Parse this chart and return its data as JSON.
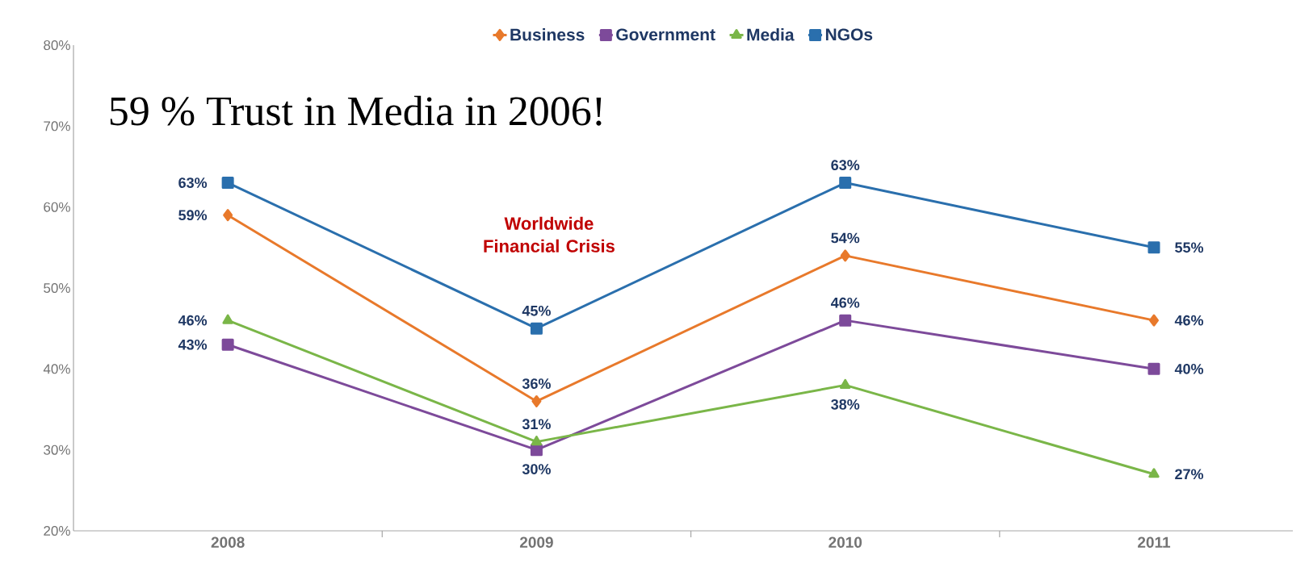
{
  "chart_data": {
    "type": "line",
    "categories": [
      "2008",
      "2009",
      "2010",
      "2011"
    ],
    "series": [
      {
        "name": "Business",
        "color": "#e8792b",
        "marker": "diamond",
        "values": [
          59,
          36,
          54,
          46
        ],
        "value_labels": [
          "59%",
          "36%",
          "54%",
          "46%"
        ]
      },
      {
        "name": "Government",
        "color": "#7d4a9a",
        "marker": "square",
        "values": [
          43,
          30,
          46,
          40
        ],
        "value_labels": [
          "43%",
          "30%",
          "46%",
          "40%"
        ]
      },
      {
        "name": "Media",
        "color": "#7ab648",
        "marker": "triangle",
        "values": [
          46,
          31,
          38,
          27
        ],
        "value_labels": [
          "46%",
          "31%",
          "38%",
          "27%"
        ]
      },
      {
        "name": "NGOs",
        "color": "#2a6fad",
        "marker": "square",
        "values": [
          63,
          45,
          63,
          55
        ],
        "value_labels": [
          "63%",
          "45%",
          "63%",
          "55%"
        ]
      }
    ],
    "ylim": [
      20,
      80
    ],
    "yticks": [
      {
        "value": 20,
        "label": "20%"
      },
      {
        "value": 30,
        "label": "30%"
      },
      {
        "value": 40,
        "label": "40%"
      },
      {
        "value": 50,
        "label": "50%"
      },
      {
        "value": 60,
        "label": "60%"
      },
      {
        "value": 70,
        "label": "70%"
      },
      {
        "value": 80,
        "label": "80%"
      }
    ],
    "legend": "top",
    "line_style": "solid",
    "annotations": [
      "59 % Trust in Media in 2006!",
      "Worldwide Financial Crisis"
    ]
  }
}
